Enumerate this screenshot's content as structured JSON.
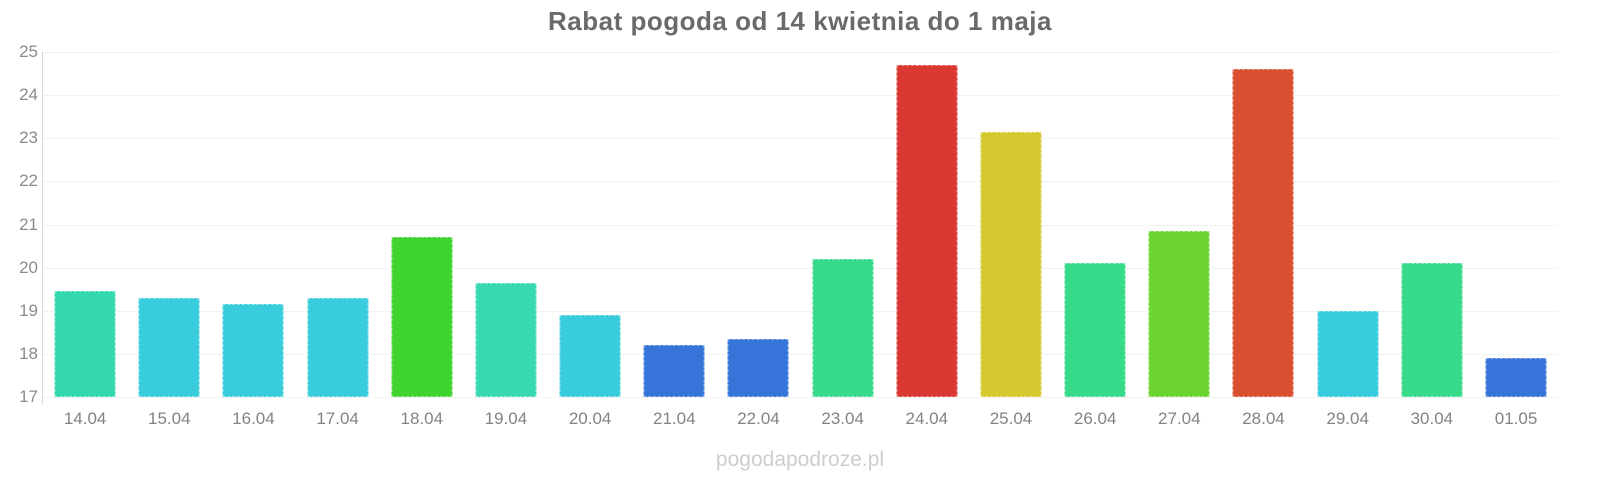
{
  "chart_data": {
    "type": "bar",
    "title": "Rabat pogoda od 14 kwietnia do 1 maja",
    "categories": [
      "14.04",
      "15.04",
      "16.04",
      "17.04",
      "18.04",
      "19.04",
      "20.04",
      "21.04",
      "22.04",
      "23.04",
      "24.04",
      "25.04",
      "26.04",
      "27.04",
      "28.04",
      "29.04",
      "30.04",
      "01.05"
    ],
    "values": [
      19.45,
      19.3,
      19.15,
      19.3,
      20.7,
      19.65,
      18.9,
      18.2,
      18.35,
      20.2,
      24.7,
      23.15,
      20.1,
      20.85,
      24.6,
      19.0,
      20.1,
      17.9
    ],
    "bar_colors": [
      "#34d8ae",
      "#38ccdd",
      "#38ccdd",
      "#38ccdd",
      "#3ed32e",
      "#36d9b0",
      "#38ccdd",
      "#3674da",
      "#3674da",
      "#36da89",
      "#da3832",
      "#d5c92f",
      "#36da89",
      "#6cd42e",
      "#da4f30",
      "#35cddd",
      "#36da89",
      "#3674da"
    ],
    "y_ticks": [
      25,
      24,
      23,
      22,
      21,
      20,
      19,
      18,
      17
    ],
    "ylim": [
      17,
      25
    ],
    "xlabel": "",
    "ylabel": "",
    "grid": "dotted horizontal gridlines at each integer",
    "legend": "none"
  },
  "watermark": "pogodapodroze.pl",
  "colors": {
    "background": "#ffffff",
    "title": "#6a6a6a",
    "axis_label": "#8b8b8b",
    "gridline": "#e6e6e6",
    "axis_line": "#d8d8d8",
    "watermark": "#cdcdcd"
  }
}
